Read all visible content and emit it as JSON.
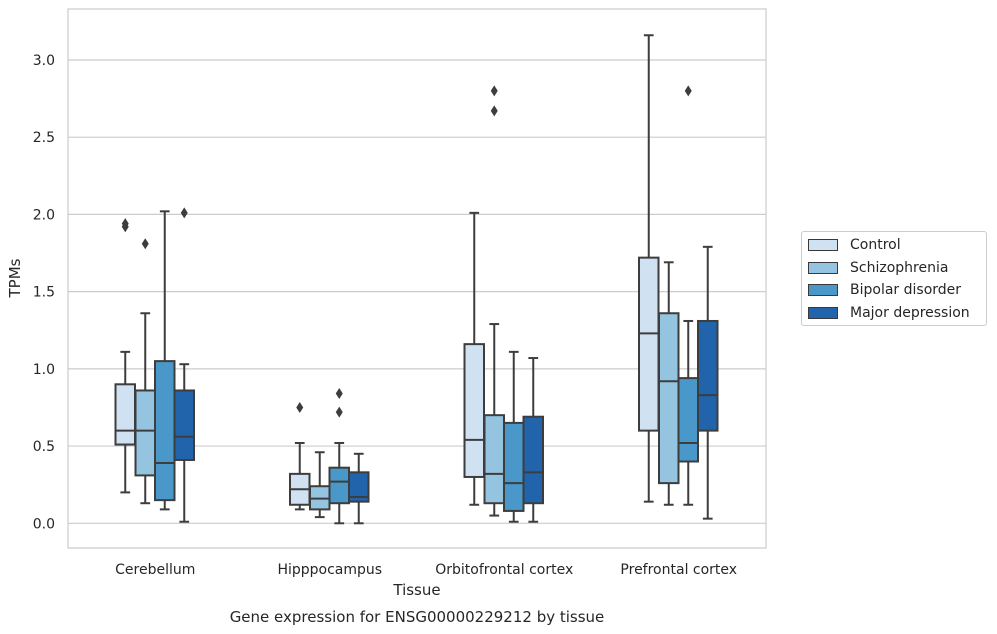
{
  "chart_data": {
    "type": "boxplot",
    "title": "Gene expression for ENSG00000229212 by tissue",
    "xlabel": "Tissue",
    "ylabel": "TPMs",
    "ylim": [
      -0.16,
      3.33
    ],
    "yticks": [
      "0.0",
      "0.5",
      "1.0",
      "1.5",
      "2.0",
      "2.5",
      "3.0"
    ],
    "grid": true,
    "legend_position": "right",
    "categories": [
      "Cerebellum",
      "Hipppocampus",
      "Orbitofrontal cortex",
      "Prefrontal cortex"
    ],
    "series": [
      {
        "name": "Control",
        "color": "#d0e1f2",
        "boxes": [
          {
            "whislo": 0.2,
            "q1": 0.51,
            "med": 0.6,
            "q3": 0.9,
            "whishi": 1.11,
            "fliers": [
              1.92,
              1.94
            ]
          },
          {
            "whislo": 0.09,
            "q1": 0.12,
            "med": 0.22,
            "q3": 0.32,
            "whishi": 0.52,
            "fliers": [
              0.75
            ]
          },
          {
            "whislo": 0.12,
            "q1": 0.3,
            "med": 0.54,
            "q3": 1.16,
            "whishi": 2.01,
            "fliers": []
          },
          {
            "whislo": 0.14,
            "q1": 0.6,
            "med": 1.23,
            "q3": 1.72,
            "whishi": 3.16,
            "fliers": []
          }
        ]
      },
      {
        "name": "Schizophrenia",
        "color": "#94c4df",
        "boxes": [
          {
            "whislo": 0.13,
            "q1": 0.31,
            "med": 0.6,
            "q3": 0.86,
            "whishi": 1.36,
            "fliers": [
              1.81
            ]
          },
          {
            "whislo": 0.04,
            "q1": 0.09,
            "med": 0.16,
            "q3": 0.24,
            "whishi": 0.46,
            "fliers": []
          },
          {
            "whislo": 0.05,
            "q1": 0.13,
            "med": 0.32,
            "q3": 0.7,
            "whishi": 1.29,
            "fliers": [
              2.67,
              2.8
            ]
          },
          {
            "whislo": 0.12,
            "q1": 0.26,
            "med": 0.92,
            "q3": 1.36,
            "whishi": 1.69,
            "fliers": []
          }
        ]
      },
      {
        "name": "Bipolar disorder",
        "color": "#4a98c9",
        "boxes": [
          {
            "whislo": 0.09,
            "q1": 0.15,
            "med": 0.39,
            "q3": 1.05,
            "whishi": 2.02,
            "fliers": []
          },
          {
            "whislo": 0.0,
            "q1": 0.13,
            "med": 0.27,
            "q3": 0.36,
            "whishi": 0.52,
            "fliers": [
              0.72,
              0.84
            ]
          },
          {
            "whislo": 0.01,
            "q1": 0.08,
            "med": 0.26,
            "q3": 0.65,
            "whishi": 1.11,
            "fliers": []
          },
          {
            "whislo": 0.12,
            "q1": 0.4,
            "med": 0.52,
            "q3": 0.94,
            "whishi": 1.31,
            "fliers": [
              2.8
            ]
          }
        ]
      },
      {
        "name": "Major depression",
        "color": "#2164ab",
        "boxes": [
          {
            "whislo": 0.01,
            "q1": 0.41,
            "med": 0.56,
            "q3": 0.86,
            "whishi": 1.03,
            "fliers": [
              2.01
            ]
          },
          {
            "whislo": 0.0,
            "q1": 0.14,
            "med": 0.17,
            "q3": 0.33,
            "whishi": 0.45,
            "fliers": []
          },
          {
            "whislo": 0.01,
            "q1": 0.13,
            "med": 0.33,
            "q3": 0.69,
            "whishi": 1.07,
            "fliers": []
          },
          {
            "whislo": 0.03,
            "q1": 0.6,
            "med": 0.83,
            "q3": 1.31,
            "whishi": 1.79,
            "fliers": []
          }
        ]
      }
    ]
  }
}
